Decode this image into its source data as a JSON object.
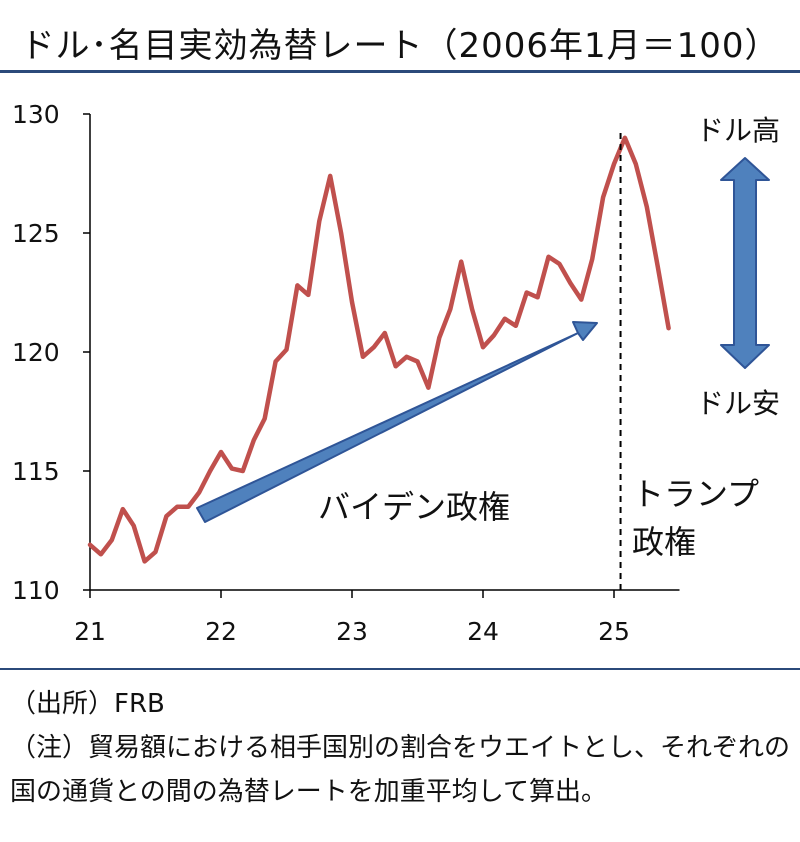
{
  "title": "ドル･名目実効為替レート（2006年1月＝100）",
  "notes": {
    "source": "（出所）FRB",
    "note_line1": "（注）貿易額における相手国別の割合をウエイトとし、それぞれの",
    "note_line2": "国の通貨との間の為替レートを加重平均して算出。"
  },
  "annotations": {
    "biden": "バイデン政権",
    "trump_line1": "トランプ",
    "trump_line2": "政権",
    "dollar_high": "ドル高",
    "dollar_low": "ドル安"
  },
  "colors": {
    "line": "#c0504d",
    "arrow": "#4f81bd",
    "arrow_outline": "#2f5597",
    "axis": "#000000",
    "rule": "#2b4a7a"
  },
  "chart_data": {
    "type": "line",
    "title": "ドル･名目実効為替レート（2006年1月＝100）",
    "xlabel": "",
    "ylabel": "",
    "x_ticks": [
      {
        "value": 21,
        "label": "21"
      },
      {
        "value": 22,
        "label": "22"
      },
      {
        "value": 23,
        "label": "23"
      },
      {
        "value": 24,
        "label": "24"
      },
      {
        "value": 25,
        "label": "25"
      }
    ],
    "y_ticks": [
      110,
      115,
      120,
      125,
      130
    ],
    "xlim": [
      21,
      25.5
    ],
    "ylim": [
      110,
      130
    ],
    "grid": false,
    "series": [
      {
        "name": "",
        "x": [
          21.0,
          21.0833,
          21.1667,
          21.25,
          21.3333,
          21.4167,
          21.5,
          21.5833,
          21.6667,
          21.75,
          21.8333,
          21.9167,
          22.0,
          22.0833,
          22.1667,
          22.25,
          22.3333,
          22.4167,
          22.5,
          22.5833,
          22.6667,
          22.75,
          22.8333,
          22.9167,
          23.0,
          23.0833,
          23.1667,
          23.25,
          23.3333,
          23.4167,
          23.5,
          23.5833,
          23.6667,
          23.75,
          23.8333,
          23.9167,
          24.0,
          24.0833,
          24.1667,
          24.25,
          24.3333,
          24.4167,
          24.5,
          24.5833,
          24.6667,
          24.75,
          24.8333,
          24.9167,
          25.0,
          25.0833,
          25.1667,
          25.25,
          25.3333,
          25.4167
        ],
        "values": [
          111.9,
          111.5,
          112.1,
          113.4,
          112.7,
          111.2,
          111.6,
          113.1,
          113.5,
          113.5,
          114.1,
          115.0,
          115.8,
          115.1,
          115.0,
          116.3,
          117.2,
          119.6,
          120.1,
          122.8,
          122.4,
          125.5,
          127.4,
          125.0,
          122.1,
          119.8,
          120.2,
          120.8,
          119.4,
          119.8,
          119.6,
          118.5,
          120.6,
          121.8,
          123.8,
          121.8,
          120.2,
          120.7,
          121.4,
          121.1,
          122.5,
          122.3,
          124.0,
          123.7,
          122.9,
          122.2,
          123.9,
          126.5,
          127.9,
          129.0,
          127.9,
          126.1,
          123.6,
          121.0
        ]
      }
    ],
    "markers": {
      "vertical_line_at": 25.05
    }
  }
}
